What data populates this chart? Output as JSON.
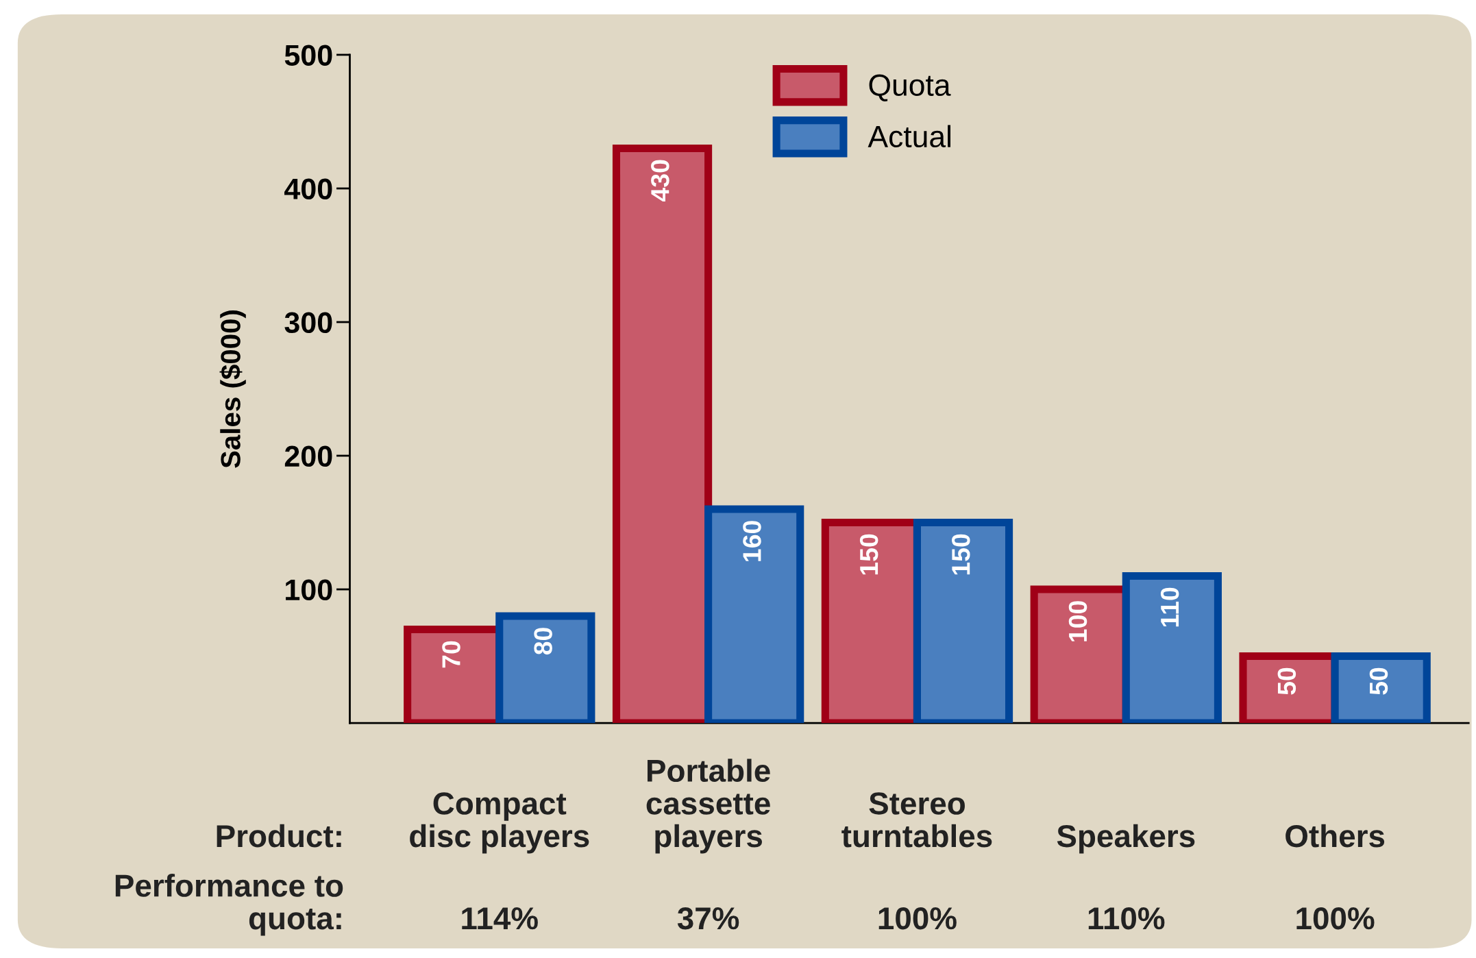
{
  "chart_data": {
    "type": "bar",
    "categories": [
      "Compact\ndisc players",
      "Portable\ncassette\nplayers",
      "Stereo\nturntables",
      "Speakers",
      "Others"
    ],
    "series": [
      {
        "name": "Quota",
        "color": "#c85a6a",
        "values": [
          70,
          430,
          150,
          100,
          50
        ]
      },
      {
        "name": "Actual",
        "color": "#4a7fbf",
        "values": [
          80,
          160,
          150,
          110,
          50
        ]
      }
    ],
    "ylabel": "Sales ($000)",
    "ylim": [
      0,
      500
    ],
    "yticks": [
      100,
      200,
      300,
      400,
      500
    ],
    "data_labels": true,
    "legend": "top",
    "grid": false,
    "annotations": [
      "Product:",
      "Performance to\nquota:",
      "114%",
      "37%",
      "100%",
      "110%",
      "100%"
    ]
  }
}
